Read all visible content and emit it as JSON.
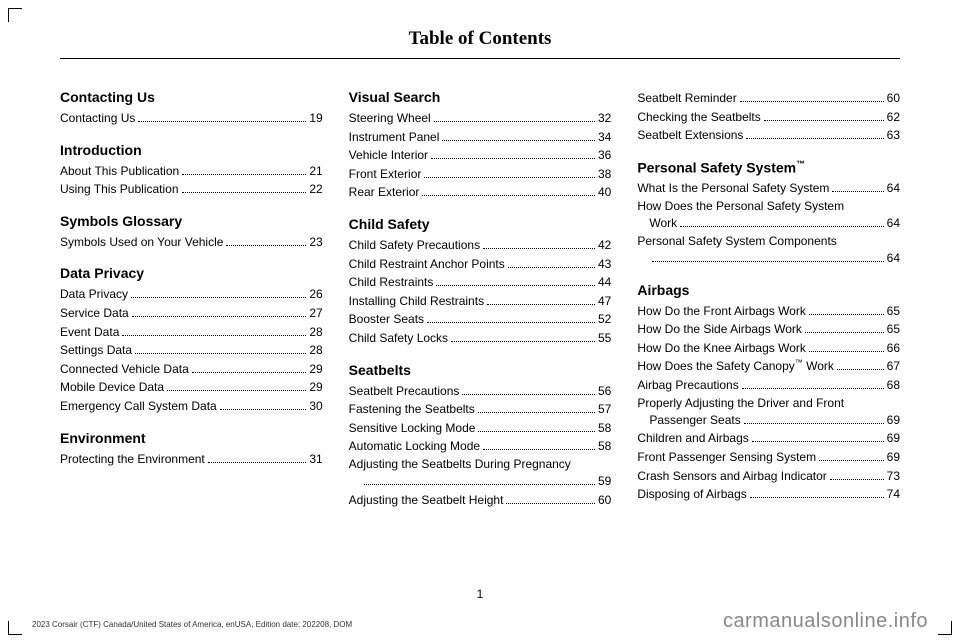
{
  "header": {
    "title": "Table of Contents"
  },
  "columns": [
    {
      "sections": [
        {
          "title": "Contacting Us",
          "entries": [
            {
              "label": "Contacting Us",
              "page": "19"
            }
          ]
        },
        {
          "title": "Introduction",
          "entries": [
            {
              "label": "About This Publication",
              "page": "21"
            },
            {
              "label": "Using This Publication",
              "page": "22"
            }
          ]
        },
        {
          "title": "Symbols Glossary",
          "entries": [
            {
              "label": "Symbols Used on Your Vehicle",
              "page": "23"
            }
          ]
        },
        {
          "title": "Data Privacy",
          "entries": [
            {
              "label": "Data Privacy",
              "page": "26"
            },
            {
              "label": "Service Data",
              "page": "27"
            },
            {
              "label": "Event Data",
              "page": "28"
            },
            {
              "label": "Settings Data",
              "page": "28"
            },
            {
              "label": "Connected Vehicle Data",
              "page": "29"
            },
            {
              "label": "Mobile Device Data",
              "page": "29"
            },
            {
              "label": "Emergency Call System Data",
              "page": "30"
            }
          ]
        },
        {
          "title": "Environment",
          "entries": [
            {
              "label": "Protecting the Environment",
              "page": "31"
            }
          ]
        }
      ]
    },
    {
      "sections": [
        {
          "title": "Visual Search",
          "entries": [
            {
              "label": "Steering Wheel",
              "page": "32"
            },
            {
              "label": "Instrument Panel",
              "page": "34"
            },
            {
              "label": "Vehicle Interior",
              "page": "36"
            },
            {
              "label": "Front Exterior",
              "page": "38"
            },
            {
              "label": "Rear Exterior",
              "page": "40"
            }
          ]
        },
        {
          "title": "Child Safety",
          "entries": [
            {
              "label": "Child Safety Precautions",
              "page": "42"
            },
            {
              "label": "Child Restraint Anchor Points",
              "page": "43"
            },
            {
              "label": "Child Restraints",
              "page": "44"
            },
            {
              "label": "Installing Child Restraints",
              "page": "47"
            },
            {
              "label": "Booster Seats",
              "page": "52"
            },
            {
              "label": "Child Safety Locks",
              "page": "55"
            }
          ]
        },
        {
          "title": "Seatbelts",
          "entries": [
            {
              "label": "Seatbelt Precautions",
              "page": "56"
            },
            {
              "label": "Fastening the Seatbelts",
              "page": "57"
            },
            {
              "label": "Sensitive Locking Mode",
              "page": "58"
            },
            {
              "label": "Automatic Locking Mode",
              "page": "58"
            },
            {
              "label": "Adjusting the Seatbelts During Pregnancy",
              "cont": "",
              "page": "59",
              "multi": true
            },
            {
              "label": "Adjusting the Seatbelt Height",
              "page": "60"
            }
          ]
        }
      ]
    },
    {
      "sections": [
        {
          "title": "",
          "entries": [
            {
              "label": "Seatbelt Reminder",
              "page": "60"
            },
            {
              "label": "Checking the Seatbelts",
              "page": "62"
            },
            {
              "label": "Seatbelt Extensions",
              "page": "63"
            }
          ]
        },
        {
          "title": "Personal Safety System™",
          "entries": [
            {
              "label": "What Is the Personal Safety System",
              "page": "64"
            },
            {
              "label": "How Does the Personal Safety System",
              "cont": "Work",
              "page": "64",
              "multi": true
            },
            {
              "label": "Personal Safety System Components",
              "cont": "",
              "page": "64",
              "multi": true
            }
          ]
        },
        {
          "title": "Airbags",
          "entries": [
            {
              "label": "How Do the Front Airbags Work",
              "page": "65"
            },
            {
              "label": "How Do the Side Airbags Work",
              "page": "65"
            },
            {
              "label": "How Do the Knee Airbags Work",
              "page": "66"
            },
            {
              "label": "How Does the Safety Canopy™ Work",
              "page": "67"
            },
            {
              "label": "Airbag Precautions",
              "page": "68"
            },
            {
              "label": "Properly Adjusting the Driver and Front",
              "cont": "Passenger Seats",
              "page": "69",
              "multi": true
            },
            {
              "label": "Children and Airbags",
              "page": "69"
            },
            {
              "label": "Front Passenger Sensing System",
              "page": "69"
            },
            {
              "label": "Crash Sensors and Airbag Indicator",
              "page": "73"
            },
            {
              "label": "Disposing of Airbags",
              "page": "74"
            }
          ]
        }
      ]
    }
  ],
  "footer": {
    "pageNumber": "1",
    "leftText": "2023 Corsair (CTF) Canada/United States of America, enUSA, Edition date: 202208, DOM",
    "rightText": "carmanualsonline.info"
  }
}
